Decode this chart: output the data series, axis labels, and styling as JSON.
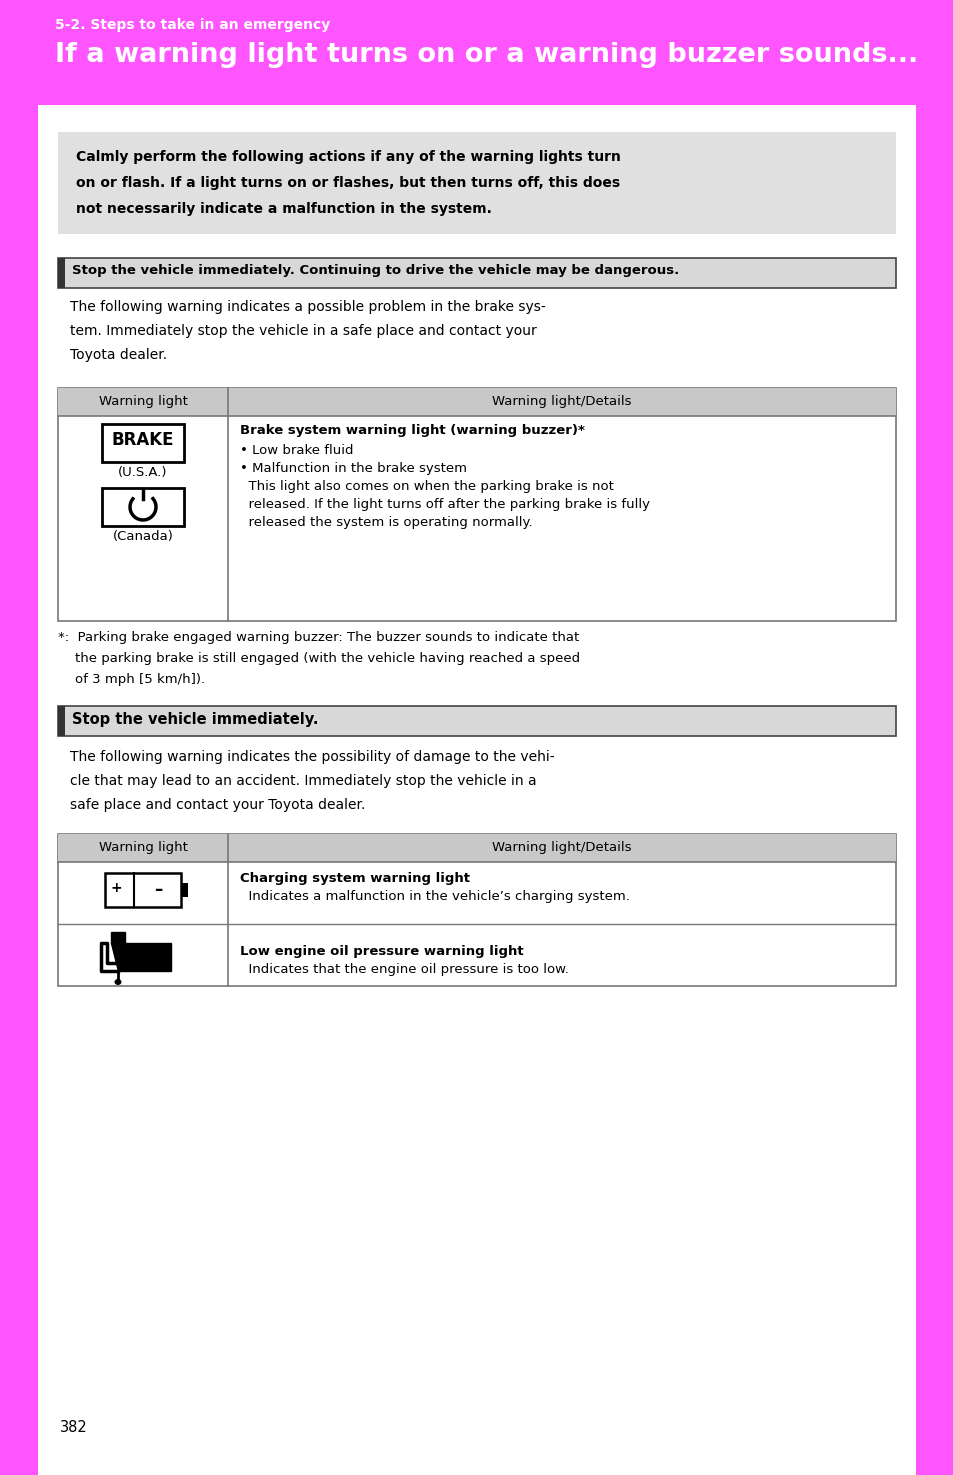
{
  "pink_bg": "#ff55ff",
  "gray_box_bg": "#e0e0e0",
  "table_header_bg": "#c8c8c8",
  "section_header_bg": "#d8d8d8",
  "subtitle": "5-2. Steps to take in an emergency",
  "title": "If a warning light turns on or a warning buzzer sounds...",
  "intro_text_lines": [
    "Calmly perform the following actions if any of the warning lights turn",
    "on or flash. If a light turns on or flashes, but then turns off, this does",
    "not necessarily indicate a malfunction in the system."
  ],
  "section1_header": "Stop the vehicle immediately. Continuing to drive the vehicle may be dangerous.",
  "section1_para_lines": [
    "The following warning indicates a possible problem in the brake sys-",
    "tem. Immediately stop the vehicle in a safe place and contact your",
    "Toyota dealer."
  ],
  "table1_col1": "Warning light",
  "table1_col2": "Warning light/Details",
  "brake_title": "Brake system warning light (warning buzzer)*",
  "brake_b1": "• Low brake fluid",
  "brake_b2": "• Malfunction in the brake system",
  "brake_note_lines": [
    "  This light also comes on when the parking brake is not",
    "  released. If the light turns off after the parking brake is fully",
    "  released the system is operating normally."
  ],
  "footnote_lines": [
    "*:  Parking brake engaged warning buzzer: The buzzer sounds to indicate that",
    "    the parking brake is still engaged (with the vehicle having reached a speed",
    "    of 3 mph [5 km/h])."
  ],
  "section2_header": "Stop the vehicle immediately.",
  "section2_para_lines": [
    "The following warning indicates the possibility of damage to the vehi-",
    "cle that may lead to an accident. Immediately stop the vehicle in a",
    "safe place and contact your Toyota dealer."
  ],
  "table2_col1": "Warning light",
  "table2_col2": "Warning light/Details",
  "charging_title": "Charging system warning light",
  "charging_desc": "  Indicates a malfunction in the vehicle’s charging system.",
  "oil_title": "Low engine oil pressure warning light",
  "oil_desc": "  Indicates that the engine oil pressure is too low.",
  "page_num": "382"
}
